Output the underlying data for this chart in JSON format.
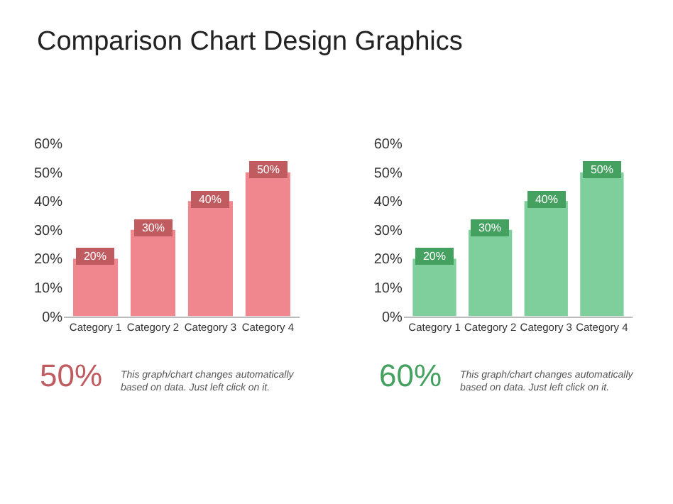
{
  "chart_data": [
    {
      "type": "bar",
      "title": "Comparison Chart Design Graphics",
      "categories": [
        "Category 1",
        "Category 2",
        "Category 3",
        "Category 4"
      ],
      "values": [
        20,
        30,
        40,
        50
      ],
      "value_labels": [
        "20%",
        "30%",
        "40%",
        "50%"
      ],
      "color": "#f0868e",
      "ylim": [
        0,
        60
      ],
      "yticks": [
        {
          "value": 0,
          "label": "0%"
        },
        {
          "value": 10,
          "label": "10%"
        },
        {
          "value": 20,
          "label": "20%"
        },
        {
          "value": 30,
          "label": "30%"
        },
        {
          "value": 40,
          "label": "40%"
        },
        {
          "value": 50,
          "label": "50%"
        },
        {
          "value": 60,
          "label": "60%"
        }
      ],
      "annotations": [
        "50%",
        "This graph/chart changes automatically based on data. Just left click on it."
      ]
    },
    {
      "type": "bar",
      "categories": [
        "Category 1",
        "Category 2",
        "Category 3",
        "Category 4"
      ],
      "values": [
        20,
        30,
        40,
        50
      ],
      "value_labels": [
        "20%",
        "30%",
        "40%",
        "50%"
      ],
      "color": "#7fcf9c",
      "ylim": [
        0,
        60
      ],
      "yticks": [
        {
          "value": 0,
          "label": "0%"
        },
        {
          "value": 10,
          "label": "10%"
        },
        {
          "value": 20,
          "label": "20%"
        },
        {
          "value": 30,
          "label": "30%"
        },
        {
          "value": 40,
          "label": "40%"
        },
        {
          "value": 50,
          "label": "50%"
        },
        {
          "value": 60,
          "label": "60%"
        }
      ],
      "annotations": [
        "60%",
        "This graph/chart changes automatically based on data. Just left click on it."
      ]
    }
  ]
}
